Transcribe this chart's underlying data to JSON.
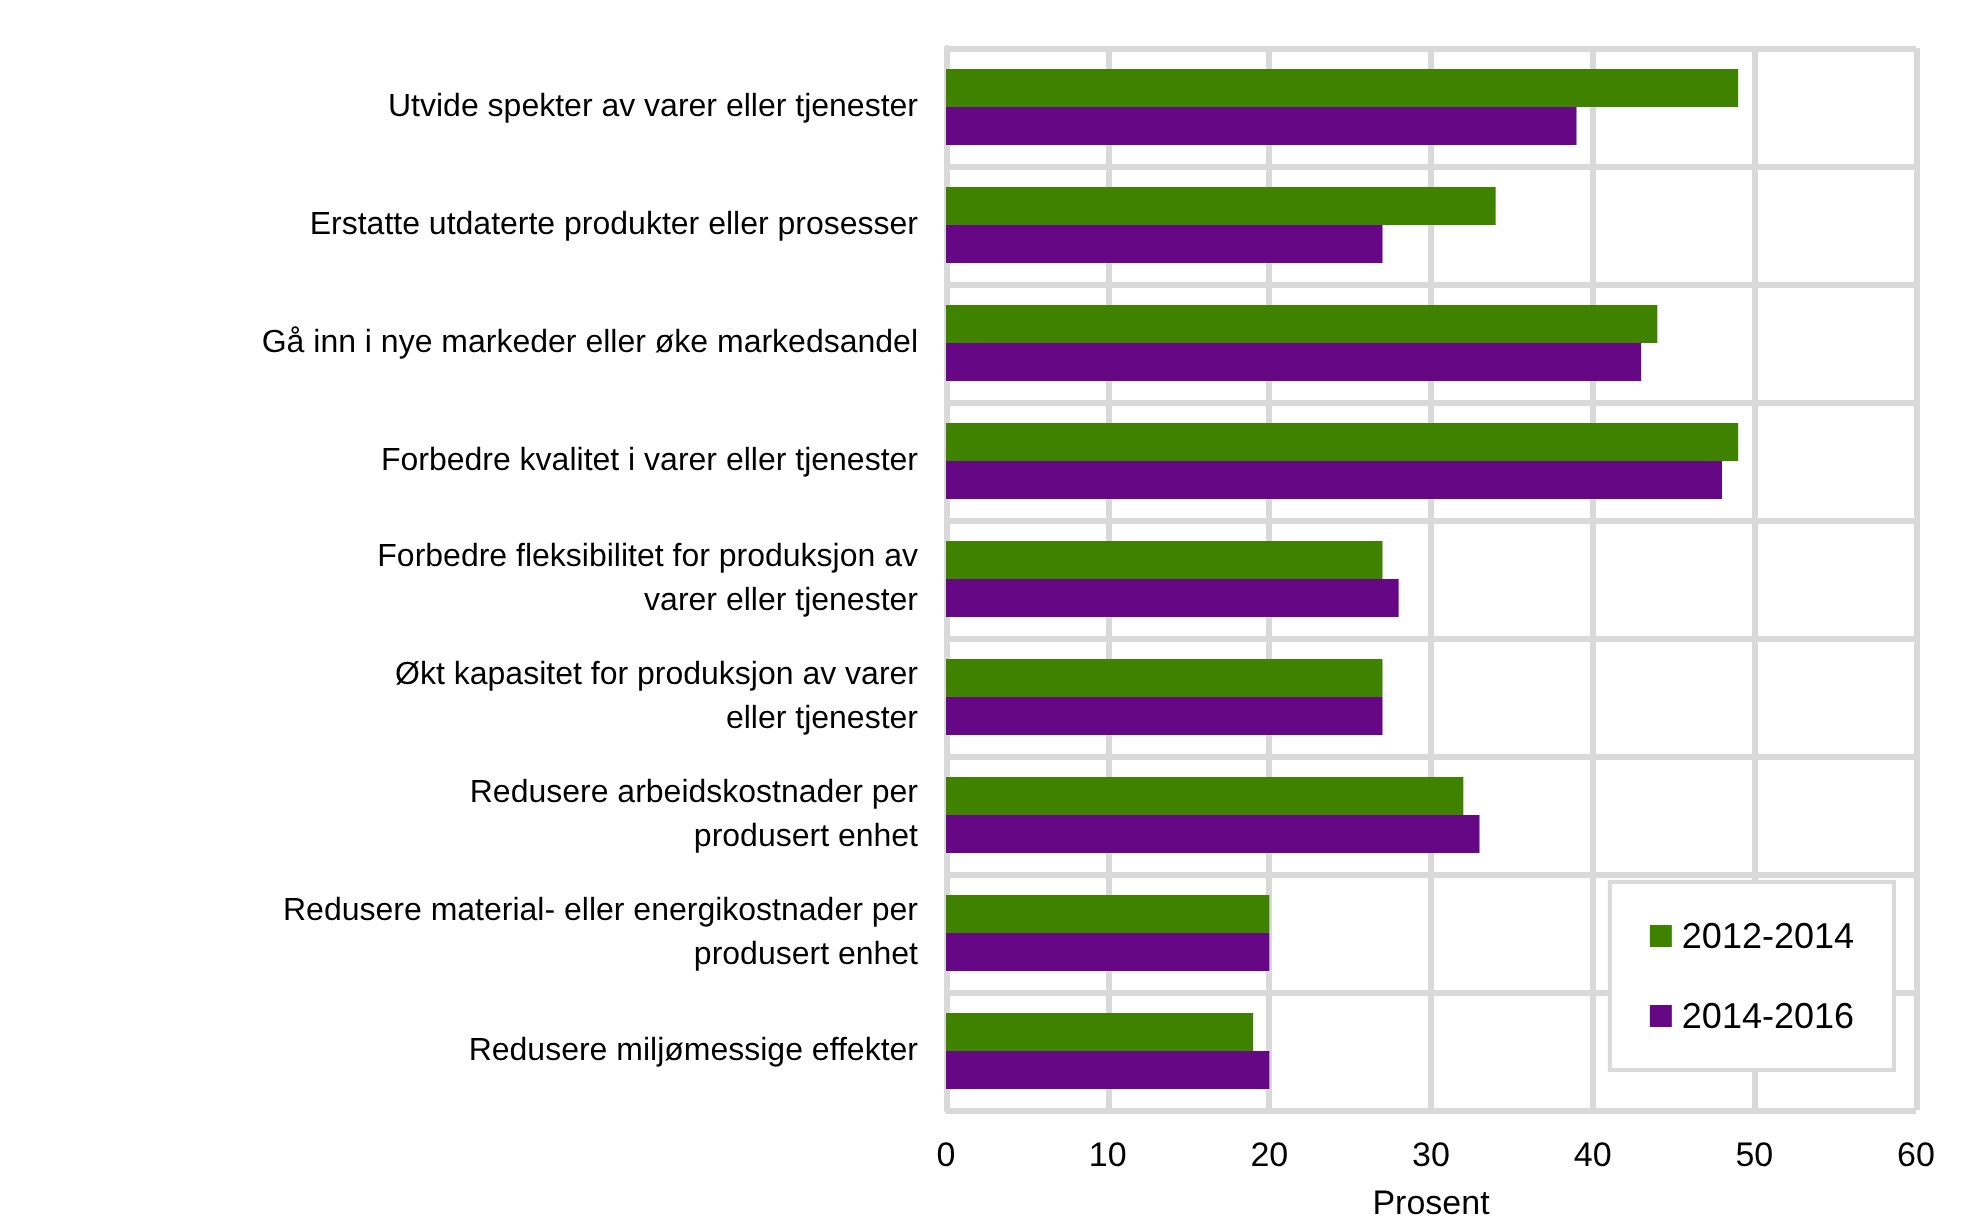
{
  "chart_data": {
    "type": "bar",
    "orientation": "horizontal",
    "xlabel": "Prosent",
    "categories": [
      "Utvide spekter av varer eller tjenester",
      "Erstatte utdaterte produkter eller prosesser",
      "Gå inn i nye markeder eller øke markedsandel",
      "Forbedre kvalitet i varer eller tjenester",
      "Forbedre fleksibilitet for produksjon av\nvarer eller tjenester",
      "Økt kapasitet for produksjon av varer\neller tjenester",
      "Redusere arbeidskostnader per\nprodusert enhet",
      "Redusere material- eller energikostnader per\nprodusert enhet",
      "Redusere miljømessige effekter"
    ],
    "series": [
      {
        "name": "2012-2014",
        "color": "#3f8200",
        "values": [
          49,
          34,
          44,
          49,
          27,
          27,
          32,
          20,
          19
        ]
      },
      {
        "name": "2014-2016",
        "color": "#660886",
        "values": [
          39,
          27,
          43,
          48,
          28,
          27,
          33,
          20,
          20
        ]
      }
    ],
    "xlim": [
      0,
      60
    ],
    "xticks": [
      0,
      10,
      20,
      30,
      40,
      50,
      60
    ],
    "grid": true,
    "legend": "bottom right"
  }
}
